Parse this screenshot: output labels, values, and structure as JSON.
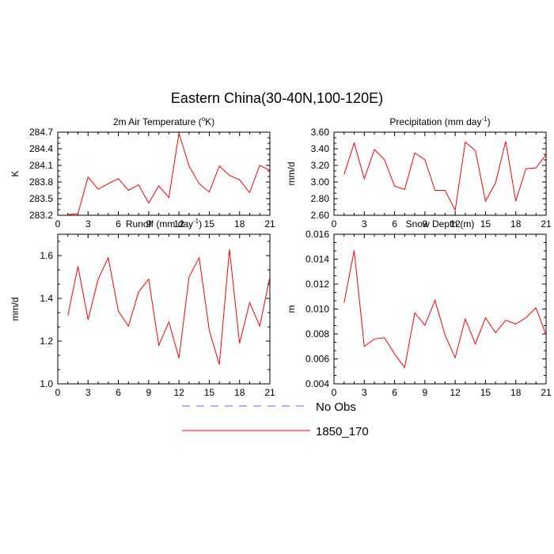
{
  "figure": {
    "title": "Eastern China(30-40N,100-120E)"
  },
  "legend": {
    "entries": [
      {
        "label": "No Obs",
        "color": "#6666ff",
        "dash": true
      },
      {
        "label": "1850_170",
        "color": "#ff0000",
        "dash": false
      }
    ]
  },
  "colors": {
    "series": "#ff0000",
    "axis": "#000000"
  },
  "chart_data": [
    {
      "type": "line",
      "title": "2m Air Temperature (°K)",
      "ylabel": "K",
      "xlabel": "",
      "xlim": [
        0,
        21
      ],
      "ylim": [
        283.2,
        284.7
      ],
      "xticks": [
        0,
        3,
        6,
        9,
        12,
        15,
        18,
        21
      ],
      "yticks": [
        "283.2",
        "283.5",
        "283.8",
        "284.1",
        "284.4",
        "284.7"
      ],
      "series": [
        {
          "name": "1850_170",
          "x": [
            1,
            2,
            3,
            4,
            5,
            6,
            7,
            8,
            9,
            10,
            11,
            12,
            13,
            14,
            15,
            16,
            17,
            18,
            19,
            20,
            21
          ],
          "values": [
            283.21,
            283.23,
            283.89,
            283.67,
            283.77,
            283.86,
            283.65,
            283.75,
            283.42,
            283.73,
            283.52,
            284.68,
            284.09,
            283.77,
            283.62,
            284.09,
            283.92,
            283.84,
            283.61,
            284.1,
            284.01
          ]
        }
      ]
    },
    {
      "type": "line",
      "title": "Precipitation (mm day-1)",
      "ylabel": "mm/d",
      "xlabel": "",
      "xlim": [
        0,
        21
      ],
      "ylim": [
        2.6,
        3.6
      ],
      "xticks": [
        0,
        3,
        6,
        9,
        12,
        15,
        18,
        21
      ],
      "yticks": [
        "2.60",
        "2.80",
        "3.00",
        "3.20",
        "3.40",
        "3.60"
      ],
      "series": [
        {
          "name": "1850_170",
          "x": [
            1,
            2,
            3,
            4,
            5,
            6,
            7,
            8,
            9,
            10,
            11,
            12,
            13,
            14,
            15,
            16,
            17,
            18,
            19,
            20,
            21
          ],
          "values": [
            3.09,
            3.47,
            3.04,
            3.39,
            3.27,
            2.95,
            2.91,
            3.35,
            3.27,
            2.9,
            2.9,
            2.66,
            3.48,
            3.38,
            2.77,
            2.99,
            3.49,
            2.77,
            3.16,
            3.17,
            3.33
          ]
        }
      ]
    },
    {
      "type": "line",
      "title": "Runoff (mm day-1)",
      "ylabel": "mm/d",
      "xlabel": "",
      "xlim": [
        0,
        21
      ],
      "ylim": [
        1.0,
        1.7
      ],
      "xticks": [
        0,
        3,
        6,
        9,
        12,
        15,
        18,
        21
      ],
      "yticks": [
        "1.0",
        "1.2",
        "1.4",
        "1.6"
      ],
      "series": [
        {
          "name": "1850_170",
          "x": [
            1,
            2,
            3,
            4,
            5,
            6,
            7,
            8,
            9,
            10,
            11,
            12,
            13,
            14,
            15,
            16,
            17,
            18,
            19,
            20,
            21
          ],
          "values": [
            1.32,
            1.55,
            1.3,
            1.49,
            1.59,
            1.34,
            1.27,
            1.43,
            1.49,
            1.18,
            1.29,
            1.12,
            1.5,
            1.59,
            1.25,
            1.09,
            1.63,
            1.19,
            1.38,
            1.27,
            1.5
          ]
        }
      ]
    },
    {
      "type": "line",
      "title": "Snow Depth (m)",
      "ylabel": "m",
      "xlabel": "",
      "xlim": [
        0,
        21
      ],
      "ylim": [
        0.004,
        0.016
      ],
      "xticks": [
        0,
        3,
        6,
        9,
        12,
        15,
        18,
        21
      ],
      "yticks": [
        "0.004",
        "0.006",
        "0.008",
        "0.010",
        "0.012",
        "0.014",
        "0.016"
      ],
      "series": [
        {
          "name": "1850_170",
          "x": [
            1,
            2,
            3,
            4,
            5,
            6,
            7,
            8,
            9,
            10,
            11,
            12,
            13,
            14,
            15,
            16,
            17,
            18,
            19,
            20,
            21
          ],
          "values": [
            0.0105,
            0.0147,
            0.007,
            0.0076,
            0.0077,
            0.0064,
            0.0053,
            0.0097,
            0.0087,
            0.0107,
            0.0079,
            0.0061,
            0.0092,
            0.0072,
            0.0093,
            0.0081,
            0.0091,
            0.0088,
            0.0093,
            0.0101,
            0.0079
          ]
        }
      ]
    }
  ]
}
